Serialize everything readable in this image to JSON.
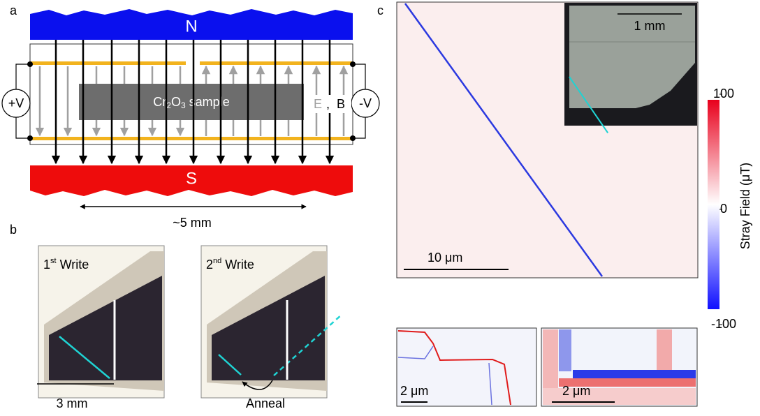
{
  "panels": {
    "a": {
      "label": "a",
      "north": "N",
      "south": "S",
      "sample": [
        "Cr",
        "2",
        "O",
        "3",
        " sample"
      ],
      "left_source": "+V",
      "right_source": "-V",
      "field_e": "E",
      "separator": ",",
      "field_b": "B",
      "width": "~5 mm"
    },
    "b": {
      "label": "b",
      "first": [
        "1",
        "st",
        " Write"
      ],
      "second": [
        "2",
        "nd",
        " Write"
      ],
      "scale": "3 mm",
      "anneal": "Anneal"
    },
    "c": {
      "label": "c",
      "inset_scale": "1 mm",
      "main_scale": "10 μm",
      "left_scale": "2 μm",
      "right_scale": "2 μm",
      "colorbar": {
        "title": "Stray Field (μT)",
        "lim": [
          -100,
          100
        ],
        "ticks": [
          100,
          0,
          -100
        ]
      }
    }
  }
}
